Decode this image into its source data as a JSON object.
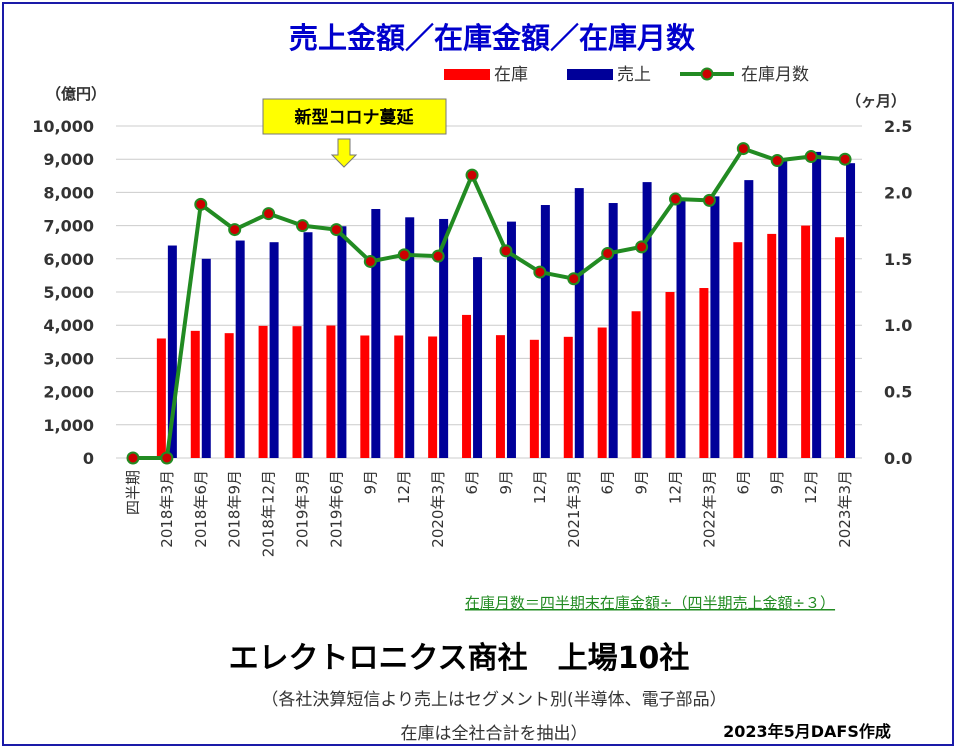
{
  "chart_data": {
    "type": "bar",
    "title": "売上金額／在庫金額／在庫月数",
    "legend": {
      "position": "top-right",
      "items": [
        {
          "label": "在庫",
          "color": "#ff0000",
          "marker": "bar"
        },
        {
          "label": "売上",
          "color": "#000099",
          "marker": "bar"
        },
        {
          "label": "在庫月数",
          "color": "#228b22",
          "marker": "line-dot"
        }
      ]
    },
    "y_left_label": "（億円）",
    "y_right_label": "（ヶ月）",
    "y_left_ticks": [
      "10,000",
      "9,000",
      "8,000",
      "7,000",
      "6,000",
      "5,000",
      "4,000",
      "3,000",
      "2,000",
      "1,000",
      "0"
    ],
    "y_right_ticks": [
      "2.5",
      "2.0",
      "1.5",
      "1.0",
      "0.5",
      "0.0"
    ],
    "ylim_left": [
      0,
      10000
    ],
    "ylim_right": [
      0,
      2.5
    ],
    "grid": true,
    "categories": [
      "四半期",
      "2018年3月",
      "2018年6月",
      "2018年9月",
      "2018年12月",
      "2019年3月",
      "2019年6月",
      "9月",
      "12月",
      "2020年3月",
      "6月",
      "9月",
      "12月",
      "2021年3月",
      "6月",
      "9月",
      "12月",
      "2022年3月",
      "6月",
      "9月",
      "12月",
      "2023年3月"
    ],
    "series": [
      {
        "name": "在庫",
        "axis": "left",
        "type": "bar",
        "color": "#ff0000",
        "values": [
          0,
          3600,
          3830,
          3760,
          3980,
          3970,
          3990,
          3690,
          3690,
          3660,
          4310,
          3700,
          3560,
          3650,
          3930,
          4420,
          5000,
          5120,
          6500,
          6750,
          7000,
          6650
        ]
      },
      {
        "name": "売上",
        "axis": "left",
        "type": "bar",
        "color": "#000099",
        "values": [
          0,
          6400,
          6000,
          6550,
          6500,
          6800,
          6980,
          7500,
          7250,
          7200,
          6050,
          7120,
          7620,
          8130,
          7680,
          8310,
          7750,
          7880,
          8370,
          9000,
          9220,
          8880
        ]
      },
      {
        "name": "在庫月数",
        "axis": "right",
        "type": "line",
        "color": "#228b22",
        "values": [
          0,
          0,
          1.91,
          1.72,
          1.84,
          1.75,
          1.72,
          1.48,
          1.53,
          1.52,
          2.13,
          1.56,
          1.4,
          1.35,
          1.54,
          1.59,
          1.95,
          1.94,
          2.33,
          2.24,
          2.27,
          2.25
        ]
      }
    ],
    "annotation": "新型コロナ蔓延",
    "formula_note": "在庫月数＝四半期末在庫金額÷（四半期売上金額÷３）",
    "footer_title": "エレクトロニクス商社　上場10社",
    "footer_note1": "（各社決算短信より売上はセグメント別(半導体、電子部品）",
    "footer_note2": "在庫は全社合計を抽出）",
    "credit": "2023年5月DAFS作成"
  }
}
